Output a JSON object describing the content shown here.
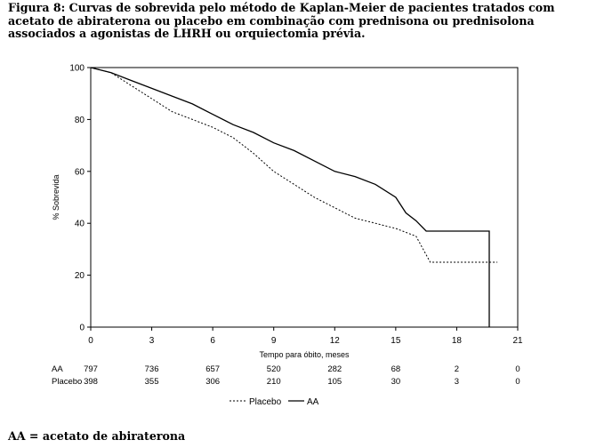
{
  "caption": "Figura 8: Curvas de sobrevida pelo método de Kaplan-Meier de pacientes tratados com acetato de abiraterona ou placebo em combinação com prednisona ou prednisolona associados a agonistas de LHRH ou orquiectomia prévia.",
  "footnote": "AA = acetato de abiraterona",
  "chart_data": {
    "type": "line",
    "xlabel": "Tempo para óbito, meses",
    "ylabel": "% Sobrevida",
    "xlim": [
      0,
      21
    ],
    "ylim": [
      0,
      100
    ],
    "xticks": [
      0,
      3,
      6,
      9,
      12,
      15,
      18,
      21
    ],
    "yticks": [
      0,
      20,
      40,
      60,
      80,
      100
    ],
    "grid": false,
    "legend_position": "bottom",
    "series": [
      {
        "name": "AA",
        "style": "solid",
        "color": "#000000",
        "x": [
          0,
          1,
          2,
          3,
          4,
          5,
          6,
          7,
          8,
          9,
          10,
          11,
          12,
          13,
          14,
          15,
          15.5,
          16,
          16.5,
          17,
          18,
          19,
          19.6,
          19.6
        ],
        "y": [
          100,
          98,
          95,
          92,
          89,
          86,
          82,
          78,
          75,
          71,
          68,
          64,
          60,
          58,
          55,
          50,
          44,
          41,
          37,
          37,
          37,
          37,
          37,
          0
        ]
      },
      {
        "name": "Placebo",
        "style": "dashed",
        "color": "#000000",
        "x": [
          0,
          1,
          2,
          3,
          4,
          5,
          6,
          7,
          8,
          9,
          10,
          11,
          12,
          13,
          14,
          15,
          16,
          16.7,
          17,
          18,
          19,
          20
        ],
        "y": [
          100,
          98,
          93,
          88,
          83,
          80,
          77,
          73,
          67,
          60,
          55,
          50,
          46,
          42,
          40,
          38,
          35,
          25,
          25,
          25,
          25,
          25
        ]
      }
    ],
    "risk_table": {
      "times": [
        0,
        3,
        6,
        9,
        12,
        15,
        18,
        21
      ],
      "rows": [
        {
          "label": "AA",
          "values": [
            "797",
            "736",
            "657",
            "520",
            "282",
            "68",
            "2",
            "0"
          ]
        },
        {
          "label": "Placebo",
          "values": [
            "398",
            "355",
            "306",
            "210",
            "105",
            "30",
            "3",
            "0"
          ]
        }
      ]
    }
  }
}
